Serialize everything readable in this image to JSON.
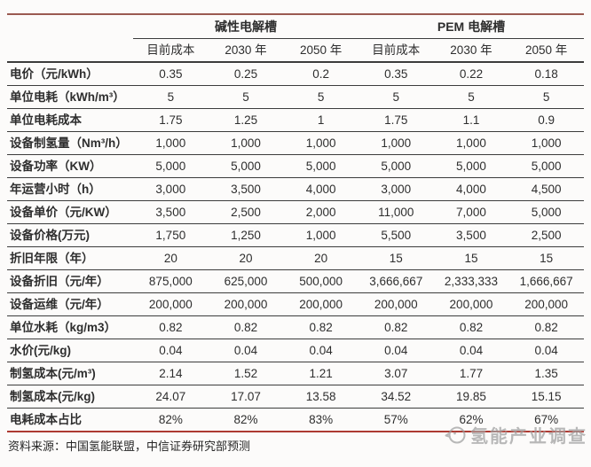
{
  "table": {
    "group_headers": [
      {
        "label": "碱性电解槽"
      },
      {
        "label": "PEM 电解槽"
      }
    ],
    "column_headers": [
      "目前成本",
      "2030 年",
      "2050 年",
      "目前成本",
      "2030 年",
      "2050 年"
    ],
    "rows": [
      {
        "label": "电价（元/kWh）",
        "values": [
          "0.35",
          "0.25",
          "0.2",
          "0.35",
          "0.22",
          "0.18"
        ]
      },
      {
        "label": "单位电耗（kWh/m³）",
        "values": [
          "5",
          "5",
          "5",
          "5",
          "5",
          "5"
        ]
      },
      {
        "label": "单位电耗成本",
        "values": [
          "1.75",
          "1.25",
          "1",
          "1.75",
          "1.1",
          "0.9"
        ]
      },
      {
        "label": "设备制氢量（Nm³/h）",
        "values": [
          "1,000",
          "1,000",
          "1,000",
          "1,000",
          "1,000",
          "1,000"
        ]
      },
      {
        "label": "设备功率（KW）",
        "values": [
          "5,000",
          "5,000",
          "5,000",
          "5,000",
          "5,000",
          "5,000"
        ]
      },
      {
        "label": "年运营小时（h）",
        "values": [
          "3,000",
          "3,500",
          "4,000",
          "3,000",
          "4,000",
          "4,500"
        ]
      },
      {
        "label": "设备单价（元/KW）",
        "values": [
          "3,500",
          "2,500",
          "2,000",
          "11,000",
          "7,000",
          "5,000"
        ]
      },
      {
        "label": "设备价格(万元)",
        "values": [
          "1,750",
          "1,250",
          "1,000",
          "5,500",
          "3,500",
          "2,500"
        ]
      },
      {
        "label": "折旧年限（年）",
        "values": [
          "20",
          "20",
          "20",
          "15",
          "15",
          "15"
        ]
      },
      {
        "label": "设备折旧（元/年）",
        "values": [
          "875,000",
          "625,000",
          "500,000",
          "3,666,667",
          "2,333,333",
          "1,666,667"
        ]
      },
      {
        "label": "设备运维（元/年）",
        "values": [
          "200,000",
          "200,000",
          "200,000",
          "200,000",
          "200,000",
          "200,000"
        ]
      },
      {
        "label": "单位水耗（kg/m3）",
        "values": [
          "0.82",
          "0.82",
          "0.82",
          "0.82",
          "0.82",
          "0.82"
        ]
      },
      {
        "label": "水价(元/kg)",
        "values": [
          "0.04",
          "0.04",
          "0.04",
          "0.04",
          "0.04",
          "0.04"
        ]
      },
      {
        "label": "制氢成本(元/m³)",
        "values": [
          "2.14",
          "1.52",
          "1.21",
          "3.07",
          "1.77",
          "1.35"
        ]
      },
      {
        "label": "制氢成本(元/kg)",
        "values": [
          "24.07",
          "17.07",
          "13.58",
          "34.52",
          "19.85",
          "15.15"
        ]
      },
      {
        "label": "电耗成本占比",
        "values": [
          "82%",
          "82%",
          "83%",
          "57%",
          "62%",
          "67%"
        ]
      }
    ]
  },
  "footer": {
    "source": "资料来源：中国氢能联盟，中信证券研究部预测"
  },
  "watermark": {
    "text": "氢能产业调查"
  },
  "colors": {
    "top_border": "#9a5a50",
    "bottom_border": "#ad3a32",
    "row_line": "#3c3c3c",
    "text": "#2e2e2e",
    "watermark": "#9f9f9f"
  }
}
